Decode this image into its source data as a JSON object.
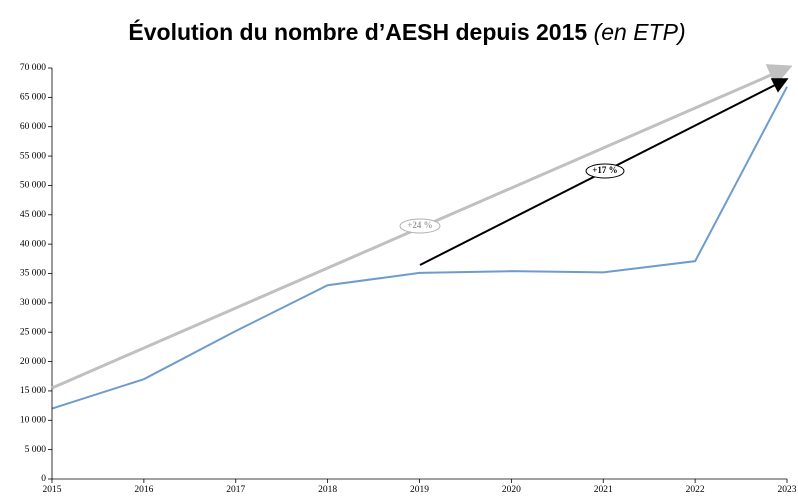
{
  "chart_data": {
    "type": "line",
    "title": "Évolution du nombre d’AESH depuis 2015",
    "subtitle": "(en ETP)",
    "x": [
      2015,
      2016,
      2017,
      2018,
      2019,
      2020,
      2021,
      2022,
      2023
    ],
    "values": [
      12000,
      17000,
      25200,
      33000,
      35100,
      35400,
      35200,
      37100,
      66800
    ],
    "color": "#6d9ccc",
    "xlim": [
      2015,
      2023
    ],
    "xticks": [
      2015,
      2016,
      2017,
      2018,
      2019,
      2020,
      2021,
      2022,
      2023
    ],
    "ylim": [
      0,
      70000
    ],
    "yticks": [
      0,
      {
        "value": 5000,
        "label": "5 000"
      },
      {
        "value": 10000,
        "label": "10 000"
      },
      {
        "value": 15000,
        "label": "15 000"
      },
      {
        "value": 20000,
        "label": "20 000"
      },
      {
        "value": 25000,
        "label": "25 000"
      },
      {
        "value": 30000,
        "label": "30 000"
      },
      {
        "value": 35000,
        "label": "35 000"
      },
      {
        "value": 40000,
        "label": "40 000"
      },
      {
        "value": 45000,
        "label": "45 000"
      },
      {
        "value": 50000,
        "label": "50 000"
      },
      {
        "value": 55000,
        "label": "55 000"
      },
      {
        "value": 60000,
        "label": "60 000"
      },
      {
        "value": 65000,
        "label": "65 000"
      },
      {
        "value": 70000,
        "label": "70 000"
      }
    ],
    "annotations": [
      "+24 %",
      "+17 %"
    ]
  }
}
